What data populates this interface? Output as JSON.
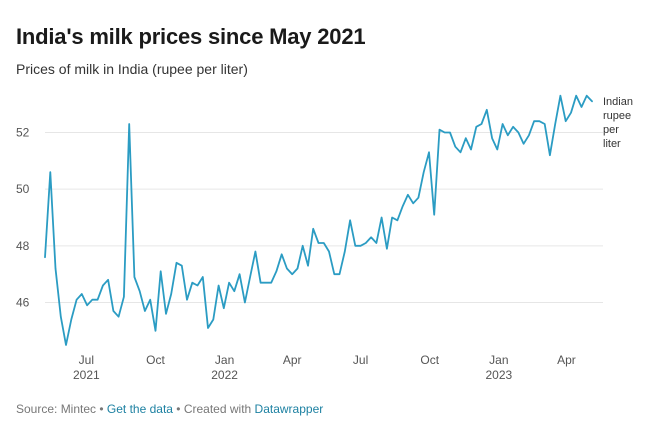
{
  "header": {
    "title": "India's milk prices since May 2021",
    "subtitle": "Prices of milk in India (rupee per liter)"
  },
  "footer": {
    "source": "Source: Mintec",
    "sep1": " • ",
    "data_link": "Get the data",
    "sep2": " • Created with ",
    "tool_link": "Datawrapper"
  },
  "colors": {
    "line": "#2b9cc3",
    "grid": "#e6e6e6"
  },
  "chart_data": {
    "type": "line",
    "title": "India's milk prices since May 2021",
    "subtitle": "Prices of milk in India (rupee per liter)",
    "xlabel": "",
    "ylabel": "",
    "ylim": [
      44.5,
      53.5
    ],
    "grid": true,
    "y_ticks": [
      46,
      48,
      50,
      52
    ],
    "x_ticks": [
      {
        "date": "2021-07-01",
        "label": "Jul",
        "year": "2021"
      },
      {
        "date": "2021-10-01",
        "label": "Oct",
        "year": ""
      },
      {
        "date": "2022-01-01",
        "label": "Jan",
        "year": "2022"
      },
      {
        "date": "2022-04-01",
        "label": "Apr",
        "year": ""
      },
      {
        "date": "2022-07-01",
        "label": "Jul",
        "year": ""
      },
      {
        "date": "2022-10-01",
        "label": "Oct",
        "year": ""
      },
      {
        "date": "2023-01-01",
        "label": "Jan",
        "year": "2023"
      },
      {
        "date": "2023-04-01",
        "label": "Apr",
        "year": ""
      }
    ],
    "series": [
      {
        "name": "Indian rupee per liter",
        "label_lines": [
          "Indian",
          "rupee",
          "per",
          "liter"
        ],
        "points": [
          [
            "2021-05-07",
            47.6
          ],
          [
            "2021-05-14",
            50.6
          ],
          [
            "2021-05-21",
            47.2
          ],
          [
            "2021-05-28",
            45.5
          ],
          [
            "2021-06-04",
            44.5
          ],
          [
            "2021-06-11",
            45.4
          ],
          [
            "2021-06-18",
            46.1
          ],
          [
            "2021-06-25",
            46.3
          ],
          [
            "2021-07-02",
            45.9
          ],
          [
            "2021-07-09",
            46.1
          ],
          [
            "2021-07-16",
            46.1
          ],
          [
            "2021-07-23",
            46.6
          ],
          [
            "2021-07-30",
            46.8
          ],
          [
            "2021-08-06",
            45.7
          ],
          [
            "2021-08-13",
            45.5
          ],
          [
            "2021-08-20",
            46.2
          ],
          [
            "2021-08-27",
            52.3
          ],
          [
            "2021-09-03",
            46.9
          ],
          [
            "2021-09-10",
            46.4
          ],
          [
            "2021-09-17",
            45.7
          ],
          [
            "2021-09-24",
            46.1
          ],
          [
            "2021-10-01",
            45.0
          ],
          [
            "2021-10-08",
            47.1
          ],
          [
            "2021-10-15",
            45.6
          ],
          [
            "2021-10-22",
            46.3
          ],
          [
            "2021-10-29",
            47.4
          ],
          [
            "2021-11-05",
            47.3
          ],
          [
            "2021-11-12",
            46.1
          ],
          [
            "2021-11-19",
            46.7
          ],
          [
            "2021-11-26",
            46.6
          ],
          [
            "2021-12-03",
            46.9
          ],
          [
            "2021-12-10",
            45.1
          ],
          [
            "2021-12-17",
            45.4
          ],
          [
            "2021-12-24",
            46.6
          ],
          [
            "2021-12-31",
            45.8
          ],
          [
            "2022-01-07",
            46.7
          ],
          [
            "2022-01-14",
            46.4
          ],
          [
            "2022-01-21",
            47.0
          ],
          [
            "2022-01-28",
            46.0
          ],
          [
            "2022-02-04",
            46.9
          ],
          [
            "2022-02-11",
            47.8
          ],
          [
            "2022-02-18",
            46.7
          ],
          [
            "2022-02-25",
            46.7
          ],
          [
            "2022-03-04",
            46.7
          ],
          [
            "2022-03-11",
            47.1
          ],
          [
            "2022-03-18",
            47.7
          ],
          [
            "2022-03-25",
            47.2
          ],
          [
            "2022-04-01",
            47.0
          ],
          [
            "2022-04-08",
            47.2
          ],
          [
            "2022-04-15",
            48.0
          ],
          [
            "2022-04-22",
            47.3
          ],
          [
            "2022-04-29",
            48.6
          ],
          [
            "2022-05-06",
            48.1
          ],
          [
            "2022-05-13",
            48.1
          ],
          [
            "2022-05-20",
            47.8
          ],
          [
            "2022-05-27",
            47.0
          ],
          [
            "2022-06-03",
            47.0
          ],
          [
            "2022-06-10",
            47.8
          ],
          [
            "2022-06-17",
            48.9
          ],
          [
            "2022-06-24",
            48.0
          ],
          [
            "2022-07-01",
            48.0
          ],
          [
            "2022-07-08",
            48.1
          ],
          [
            "2022-07-15",
            48.3
          ],
          [
            "2022-07-22",
            48.1
          ],
          [
            "2022-07-29",
            49.0
          ],
          [
            "2022-08-05",
            47.9
          ],
          [
            "2022-08-12",
            49.0
          ],
          [
            "2022-08-19",
            48.9
          ],
          [
            "2022-08-26",
            49.4
          ],
          [
            "2022-09-02",
            49.8
          ],
          [
            "2022-09-09",
            49.5
          ],
          [
            "2022-09-16",
            49.7
          ],
          [
            "2022-09-23",
            50.6
          ],
          [
            "2022-09-30",
            51.3
          ],
          [
            "2022-10-07",
            49.1
          ],
          [
            "2022-10-14",
            52.1
          ],
          [
            "2022-10-21",
            52.0
          ],
          [
            "2022-10-28",
            52.0
          ],
          [
            "2022-11-04",
            51.5
          ],
          [
            "2022-11-11",
            51.3
          ],
          [
            "2022-11-18",
            51.8
          ],
          [
            "2022-11-25",
            51.4
          ],
          [
            "2022-12-02",
            52.2
          ],
          [
            "2022-12-09",
            52.3
          ],
          [
            "2022-12-16",
            52.8
          ],
          [
            "2022-12-23",
            51.8
          ],
          [
            "2022-12-30",
            51.4
          ],
          [
            "2023-01-06",
            52.3
          ],
          [
            "2023-01-13",
            51.9
          ],
          [
            "2023-01-20",
            52.2
          ],
          [
            "2023-01-27",
            52.0
          ],
          [
            "2023-02-03",
            51.6
          ],
          [
            "2023-02-10",
            51.9
          ],
          [
            "2023-02-17",
            52.4
          ],
          [
            "2023-02-24",
            52.4
          ],
          [
            "2023-03-03",
            52.3
          ],
          [
            "2023-03-10",
            51.2
          ],
          [
            "2023-03-17",
            52.3
          ],
          [
            "2023-03-24",
            53.3
          ],
          [
            "2023-03-31",
            52.4
          ],
          [
            "2023-04-07",
            52.7
          ],
          [
            "2023-04-14",
            53.3
          ],
          [
            "2023-04-21",
            52.9
          ],
          [
            "2023-04-28",
            53.3
          ],
          [
            "2023-05-05",
            53.1
          ]
        ]
      }
    ]
  }
}
